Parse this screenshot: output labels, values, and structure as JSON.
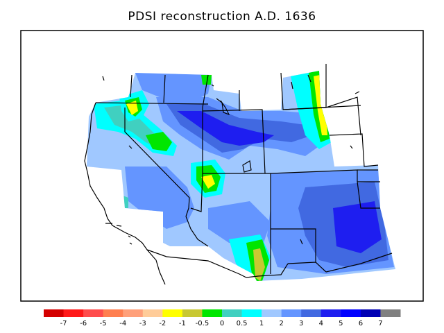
{
  "title": "PDSI reconstruction A.D. 1636",
  "colorbar": {
    "colors": [
      "#d40000",
      "#ff1a1a",
      "#ff4d4d",
      "#ff7f50",
      "#ffa07a",
      "#ffcc99",
      "#ffff00",
      "#c8c832",
      "#00e600",
      "#40d0c0",
      "#00ffff",
      "#a0c8ff",
      "#6495ff",
      "#4169e1",
      "#1e1ef0",
      "#0000ff",
      "#0000b4",
      "#808080"
    ],
    "labels": [
      "-7",
      "-6",
      "-5",
      "-4",
      "-3",
      "-2",
      "-1",
      "-0.5",
      "0",
      "0.5",
      "1",
      "2",
      "3",
      "4",
      "5",
      "6",
      "7"
    ]
  },
  "palette": {
    "lightblue": "#a0c8ff",
    "medblue": "#6495ff",
    "blue": "#4169e1",
    "royal": "#1e1ef0",
    "cyan": "#00ffff",
    "teal": "#40d0c0",
    "green": "#00e600",
    "olive": "#c8c832",
    "yellow": "#ffff00"
  }
}
